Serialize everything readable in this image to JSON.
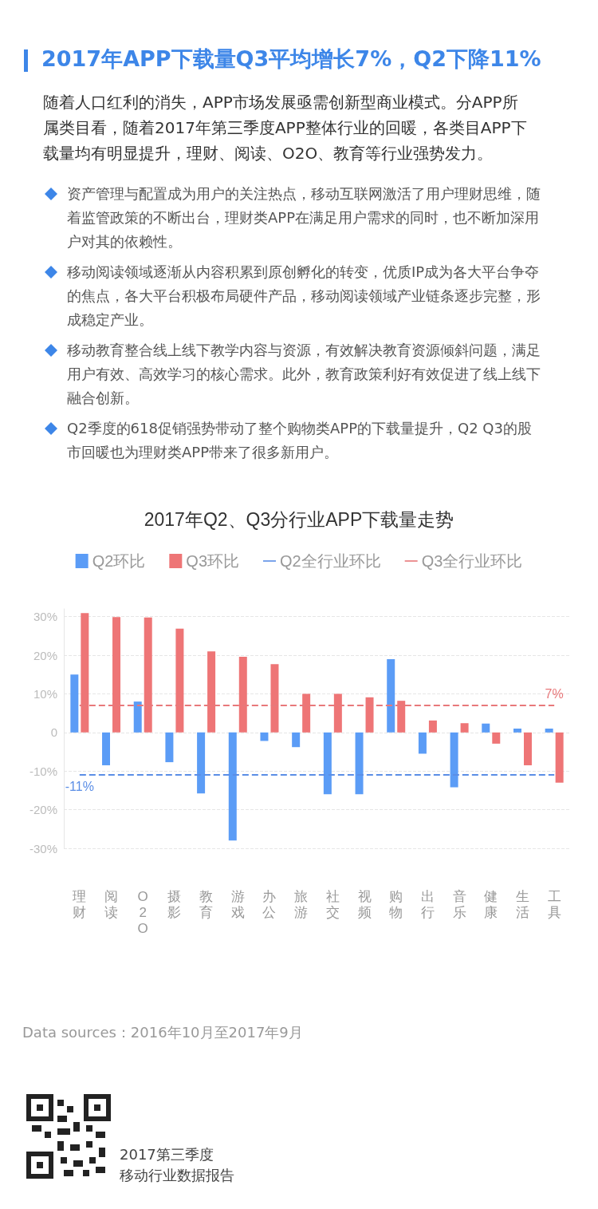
{
  "chart_data": {
    "type": "bar",
    "title": "2017年Q2、Q3分行业APP下载量走势",
    "annotations": [
      "2017年APP下载量Q3平均增长7%，Q2下降11%",
      "随着人口红利的消失，APP市场发展亟需创新型商业模式。分APP所属类目看，随着2017年第三季度APP整体行业的回暖，各类目APP下载量均有明显提升，理财、阅读、O2O、教育等行业强势发力。",
      "资产管理与配置成为用户的关注热点，移动互联网激活了用户理财思维，随着监管政策的不断出台，理财类APP在满足用户需求的同时，也不断加深用户对其的依赖性。",
      "移动阅读领域逐渐从内容积累到原创孵化的转变，优质IP成为各大平台争夺的焦点，各大平台积极布局硬件产品，移动阅读领域产业链条逐步完整，形成稳定产业。",
      "移动教育整合线上线下教学内容与资源，有效解决教育资源倾斜问题，满足用户有效、高效学习的核心需求。此外，教育政策利好有效促进了线上线下融合创新。",
      "Q2季度的618促销强势带动了整个购物类APP的下载量提升，Q2 Q3的股市回暖也为理财类APP带来了很多新用户。",
      "Data sources：2016年10月至2017年9月",
      "2017第三季度",
      "移动行业数据报告"
    ],
    "categories": [
      "理财",
      "阅读",
      "O2O",
      "摄影",
      "教育",
      "游戏",
      "办公",
      "旅游",
      "社交",
      "视频",
      "购物",
      "出行",
      "音乐",
      "健康",
      "生活",
      "工具"
    ],
    "series": [
      {
        "name": "Q2环比",
        "color": "#5b9cf6",
        "values": [
          15,
          -8.5,
          8,
          -7.7,
          -15.8,
          -28,
          -2.2,
          -3.8,
          -16,
          -16,
          19,
          -5.5,
          -14.2,
          2.3,
          1,
          1
        ]
      },
      {
        "name": "Q3环比",
        "color": "#ee7576",
        "values": [
          30.9,
          29.9,
          29.8,
          26.9,
          21,
          19.6,
          17.7,
          10,
          10,
          9.1,
          8.2,
          3.1,
          2.4,
          -2.9,
          -8.5,
          -13
        ]
      },
      {
        "name": "Q2全行业环比",
        "type": "line",
        "color": "#5b8ee6",
        "line_style": "dashed",
        "marker": "none",
        "values": [
          -11,
          -11,
          -11,
          -11,
          -11,
          -11,
          -11,
          -11,
          -11,
          -11,
          -11,
          -11,
          -11,
          -11,
          -11,
          -11
        ],
        "value_labels": [
          "-11%",
          null,
          null,
          null,
          null,
          null,
          null,
          null,
          null,
          null,
          null,
          null,
          null,
          null,
          null,
          null
        ]
      },
      {
        "name": "Q3全行业环比",
        "type": "line",
        "color": "#e8787a",
        "line_style": "dashed",
        "marker": "none",
        "values": [
          7,
          7,
          7,
          7,
          7,
          7,
          7,
          7,
          7,
          7,
          7,
          7,
          7,
          7,
          7,
          7
        ],
        "value_labels": [
          null,
          null,
          null,
          null,
          null,
          null,
          null,
          null,
          null,
          null,
          null,
          null,
          null,
          null,
          null,
          "7%"
        ]
      }
    ],
    "ylim": [
      -30,
      32
    ],
    "yticks": [
      {
        "value": -30,
        "label": "-30%"
      },
      {
        "value": -20,
        "label": "-20%"
      },
      {
        "value": -10,
        "label": "-10%"
      },
      0,
      {
        "value": 10,
        "label": "10%"
      },
      {
        "value": 20,
        "label": "20%"
      },
      {
        "value": 30,
        "label": "30%"
      }
    ],
    "grid": "y",
    "legend": "top"
  }
}
